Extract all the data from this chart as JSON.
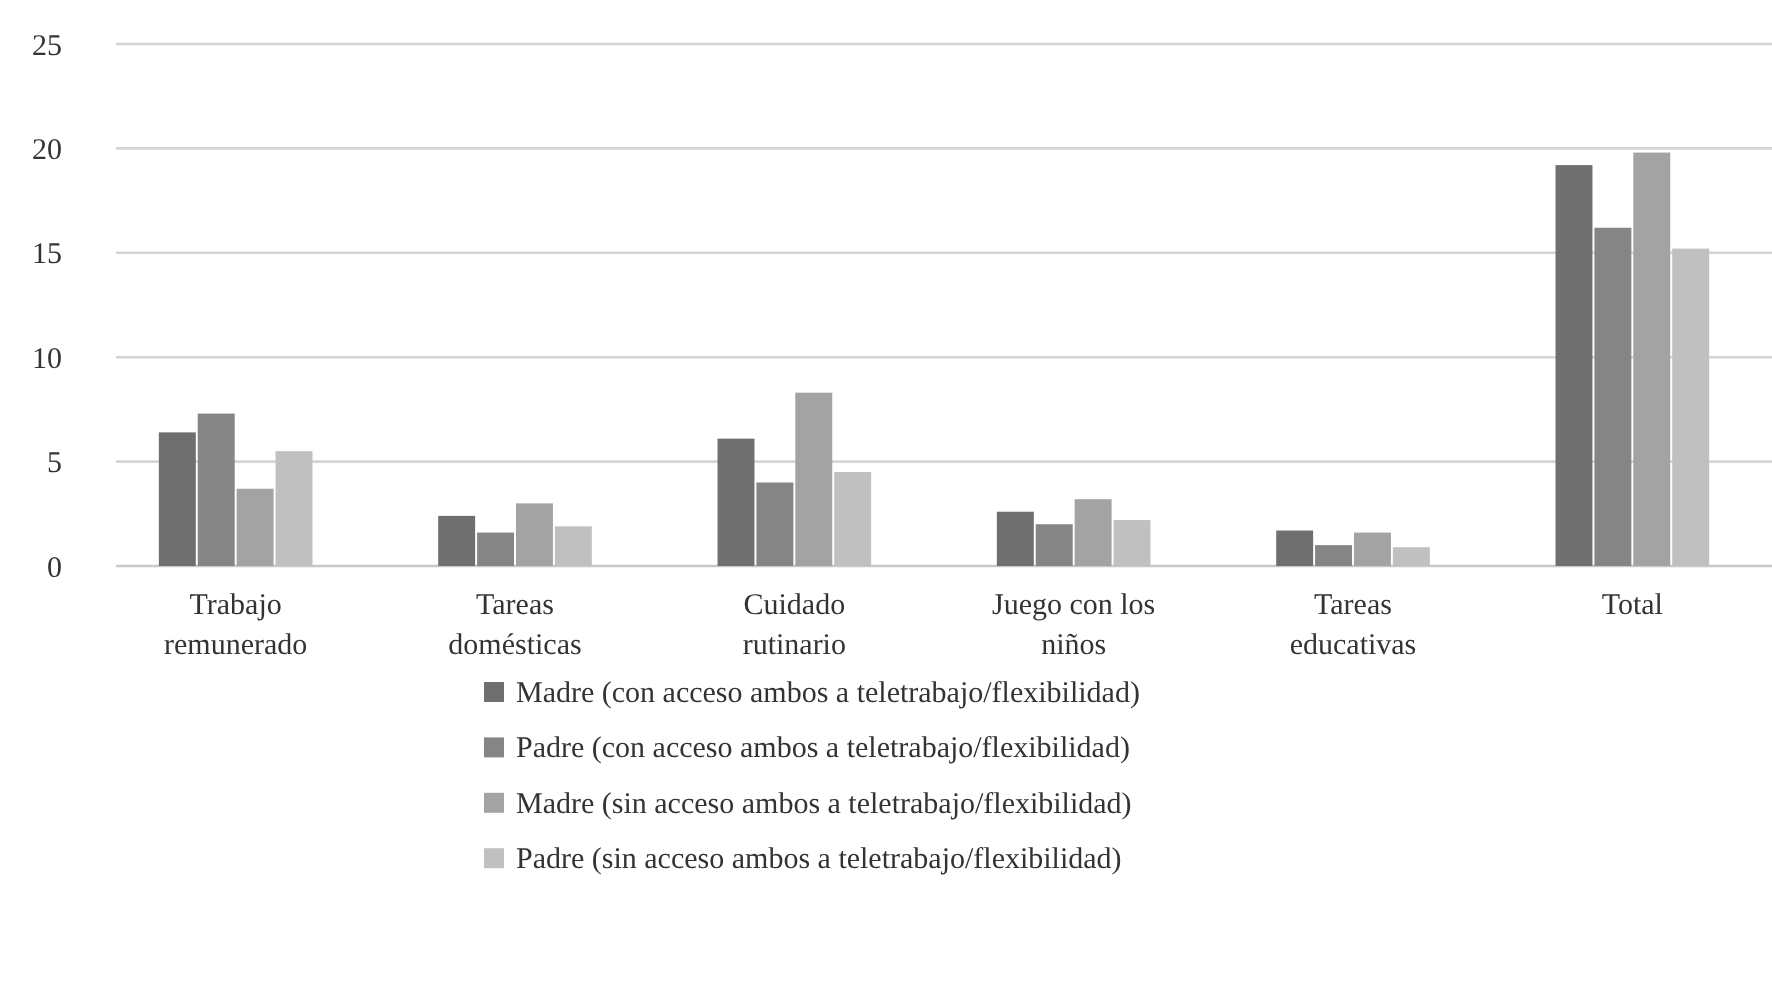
{
  "chart_data": {
    "type": "bar",
    "categories": [
      "Trabajo remunerado",
      "Tareas domésticas",
      "Cuidado rutinario",
      "Juego con los niños",
      "Tareas educativas",
      "Total"
    ],
    "series": [
      {
        "name": "Madre (con acceso ambos a teletrabajo/flexibilidad)",
        "color": "#6f6f6f",
        "values": [
          6.4,
          2.4,
          6.1,
          2.6,
          1.7,
          19.2
        ]
      },
      {
        "name": "Padre (con acceso ambos a teletrabajo/flexibilidad)",
        "color": "#858585",
        "values": [
          7.3,
          1.6,
          4.0,
          2.0,
          1.0,
          16.2
        ]
      },
      {
        "name": "Madre (sin acceso ambos a teletrabajo/flexibilidad)",
        "color": "#a3a3a3",
        "values": [
          3.7,
          3.0,
          8.3,
          3.2,
          1.6,
          19.8
        ]
      },
      {
        "name": "Padre (sin acceso ambos a teletrabajo/flexibilidad)",
        "color": "#c0c0c0",
        "values": [
          5.5,
          1.9,
          4.5,
          2.2,
          0.9,
          15.2
        ]
      }
    ],
    "ylim": [
      0,
      25
    ],
    "yticks": [
      0,
      5,
      10,
      15,
      20,
      25
    ],
    "grid": "y",
    "legend": "bottom"
  }
}
